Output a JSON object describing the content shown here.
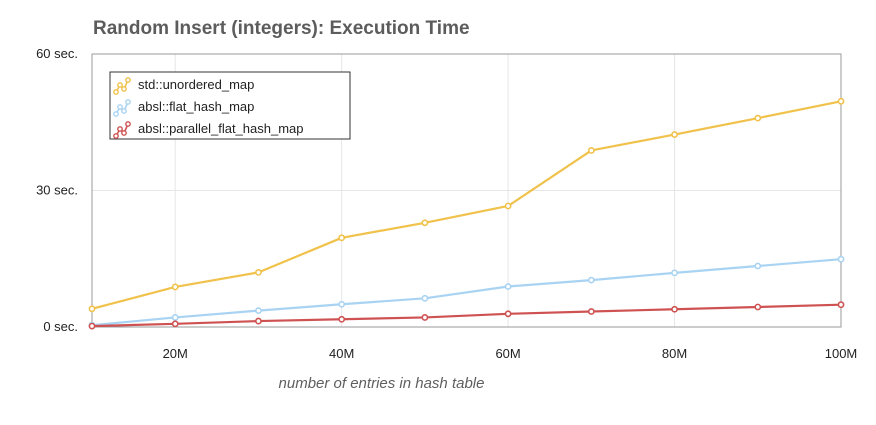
{
  "chart_data": {
    "type": "line",
    "title": "Random Insert (integers): Execution Time",
    "xlabel": "number of entries in hash table",
    "ylabel": "",
    "x": [
      10,
      20,
      30,
      40,
      50,
      60,
      70,
      80,
      90,
      100
    ],
    "x_unit": "M",
    "xlim": [
      10,
      100
    ],
    "ylim": [
      0,
      60
    ],
    "x_ticks": [
      {
        "value": 20,
        "label": "20M"
      },
      {
        "value": 40,
        "label": "40M"
      },
      {
        "value": 60,
        "label": "60M"
      },
      {
        "value": 80,
        "label": "80M"
      },
      {
        "value": 100,
        "label": "100M"
      }
    ],
    "y_ticks": [
      {
        "value": 0,
        "label": "0 sec."
      },
      {
        "value": 30,
        "label": "30 sec."
      },
      {
        "value": 60,
        "label": "60 sec."
      }
    ],
    "grid": true,
    "legend_position": "top-left",
    "series": [
      {
        "name": "std::unordered_map",
        "color": "#f0c24b",
        "values": [
          4.0,
          8.8,
          12.0,
          19.6,
          22.9,
          26.6,
          38.8,
          42.3,
          45.9,
          49.6
        ]
      },
      {
        "name": "absl::flat_hash_map",
        "color": "#a9d3f2",
        "values": [
          0.4,
          2.1,
          3.6,
          5.0,
          6.3,
          8.9,
          10.3,
          11.9,
          13.4,
          14.9
        ]
      },
      {
        "name": "absl::parallel_flat_hash_map",
        "color": "#cf5252",
        "values": [
          0.2,
          0.7,
          1.3,
          1.7,
          2.1,
          2.9,
          3.4,
          3.9,
          4.4,
          4.9
        ]
      }
    ]
  }
}
